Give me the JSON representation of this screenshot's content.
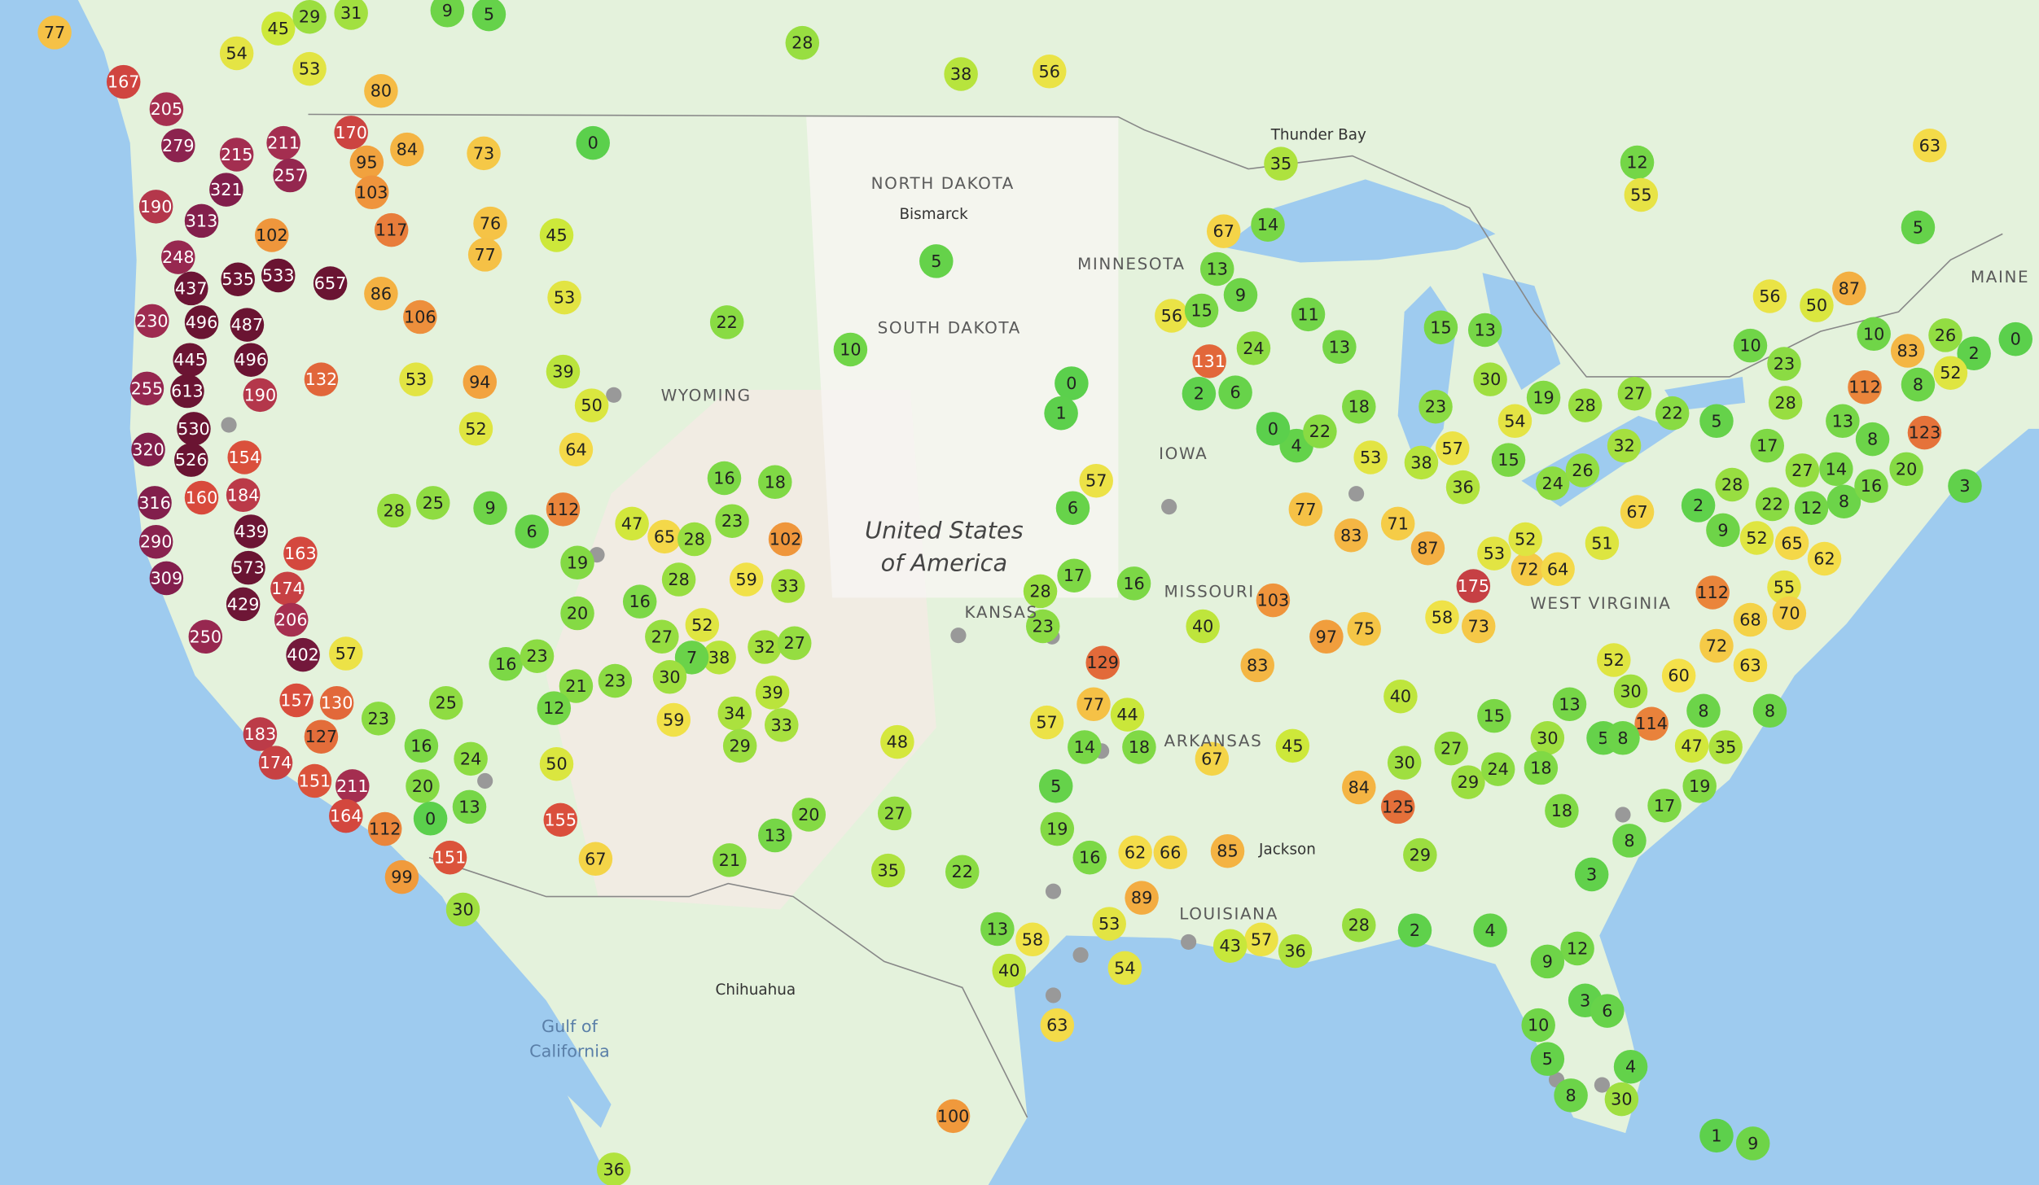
{
  "labels": [
    "NORTH DAKOTA",
    "Bismarck",
    "SOUTH DAKOTA",
    "MINNESOTA",
    "WYOMING",
    "IOWA",
    "United States",
    "of America",
    "KANSAS",
    "MISSOURI",
    "ARKANSAS",
    "LOUISIANA",
    "Jackson",
    "WEST VIRGINIA",
    "MAINE",
    "Thunder Bay",
    "Gulf of",
    "California",
    "Chihuahua"
  ],
  "markers": [
    77,
    45,
    29,
    31,
    54,
    53,
    9,
    5,
    80,
    167,
    205,
    279,
    215,
    211,
    257,
    170,
    95,
    84,
    73,
    103,
    321,
    190,
    313,
    102,
    117,
    76,
    77,
    45,
    248,
    437,
    535,
    533,
    657,
    86,
    106,
    53,
    230,
    496,
    487,
    445,
    496,
    132,
    53,
    94,
    255,
    613,
    190,
    39,
    50,
    52,
    530,
    320,
    526,
    154,
    64,
    316,
    160,
    184,
    112,
    290,
    439,
    163,
    573,
    309,
    174,
    429,
    206,
    250,
    402,
    157,
    130,
    57,
    183,
    127,
    174,
    151,
    211,
    164,
    112,
    151,
    99,
    23,
    16,
    24,
    13,
    20,
    0,
    30,
    25,
    28,
    25,
    9,
    6,
    19,
    47,
    65,
    28,
    20,
    16,
    27,
    52,
    38,
    7,
    30,
    16,
    23,
    23,
    21,
    12,
    50,
    155,
    67,
    59,
    23,
    28,
    59,
    33,
    102,
    16,
    18,
    32,
    27,
    39,
    34,
    33,
    29,
    13,
    20,
    21,
    22,
    10,
    0,
    28,
    38,
    56,
    5,
    35,
    22,
    27,
    48,
    100,
    36,
    0,
    1,
    57,
    6,
    17,
    28,
    23,
    129,
    57,
    77,
    44,
    14,
    18,
    16,
    40,
    67,
    83,
    103,
    97,
    75,
    45,
    58,
    73,
    175,
    53,
    72,
    64,
    52,
    87,
    71,
    83,
    77,
    4,
    0,
    22,
    18,
    53,
    38,
    57,
    36,
    23,
    15,
    54,
    19,
    28,
    24,
    26,
    32,
    51,
    67,
    2,
    28,
    9,
    22,
    12,
    8,
    27,
    14,
    16,
    20,
    3,
    8,
    13,
    28,
    17,
    52,
    65,
    62,
    55,
    68,
    70,
    112,
    72,
    63,
    8,
    52,
    60,
    30,
    114,
    5,
    8,
    8,
    47,
    35,
    19,
    17,
    8,
    3,
    12,
    9,
    3,
    6,
    10,
    5,
    8,
    30,
    4,
    1,
    9,
    13,
    30,
    15,
    27,
    29,
    24,
    18,
    18,
    40,
    30,
    84,
    125,
    29,
    2,
    4,
    28,
    36,
    57,
    43,
    85,
    66,
    62,
    16,
    19,
    5,
    89,
    53,
    54,
    63,
    58,
    40,
    13,
    67,
    14,
    13,
    9,
    56,
    15,
    24,
    11,
    13,
    131,
    2,
    6,
    15,
    13,
    30,
    35,
    12,
    55,
    63,
    5,
    87,
    56,
    50,
    10,
    23,
    10,
    83,
    26,
    2,
    0,
    52,
    8,
    112,
    27,
    22,
    5,
    123
  ]
}
